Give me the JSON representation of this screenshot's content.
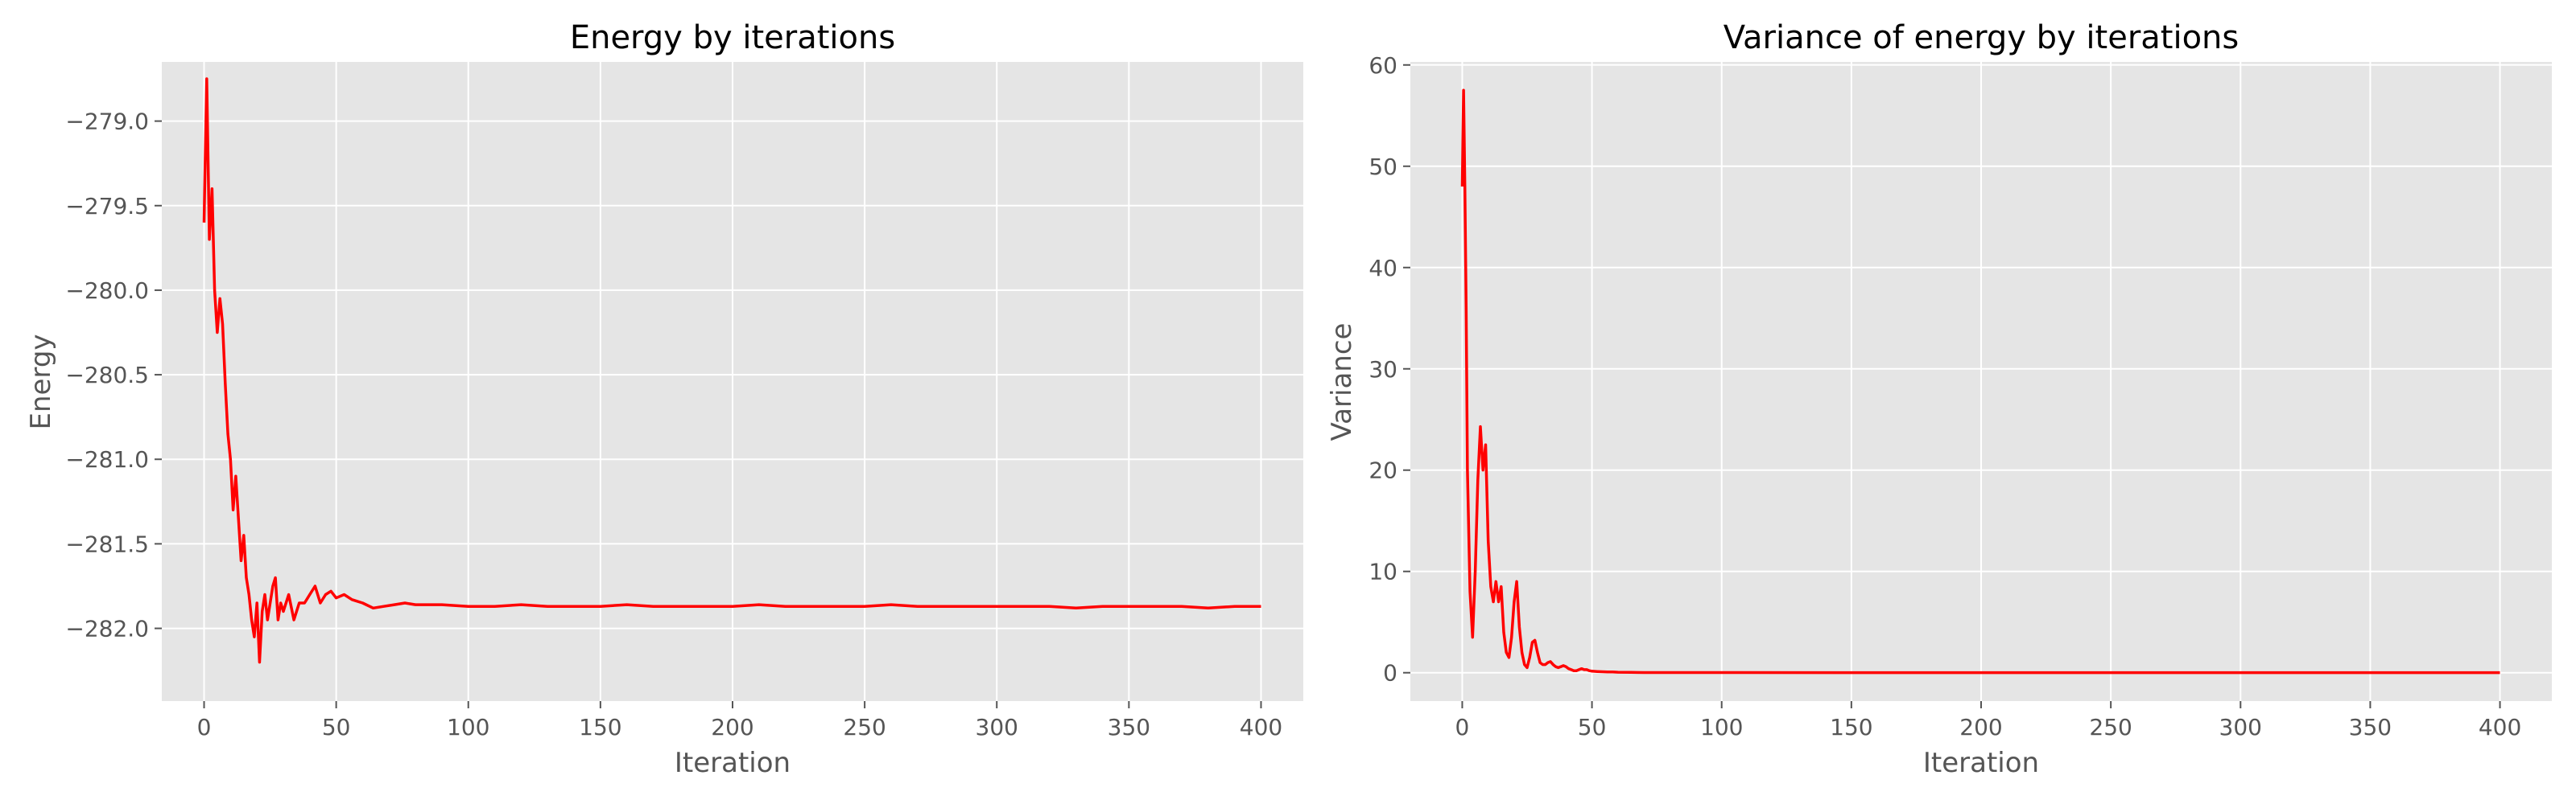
{
  "colors": {
    "background": "#ffffff",
    "plot_bg": "#e5e5e5",
    "grid": "#ffffff",
    "series": "#ff0000",
    "text": "#555555"
  },
  "chart_data": [
    {
      "type": "line",
      "title": "Energy by iterations",
      "xlabel": "Iteration",
      "ylabel": "Energy",
      "xlim": [
        -16,
        416
      ],
      "ylim": [
        -282.43,
        -278.65
      ],
      "xticks": [
        0,
        50,
        100,
        150,
        200,
        250,
        300,
        350,
        400
      ],
      "yticks": [
        -282.0,
        -281.5,
        -281.0,
        -280.5,
        -280.0,
        -279.5,
        -279.0
      ],
      "ytick_labels": [
        "−282.0",
        "−281.5",
        "−281.0",
        "−280.5",
        "−280.0",
        "−279.5",
        "−279.0"
      ],
      "grid": true,
      "series": [
        {
          "color": "#ff0000",
          "x": [
            0,
            1,
            2,
            3,
            4,
            5,
            6,
            7,
            8,
            9,
            10,
            11,
            12,
            13,
            14,
            15,
            16,
            17,
            18,
            19,
            20,
            21,
            22,
            23,
            24,
            25,
            26,
            27,
            28,
            29,
            30,
            32,
            34,
            36,
            38,
            40,
            42,
            44,
            46,
            48,
            50,
            53,
            56,
            60,
            64,
            68,
            72,
            76,
            80,
            90,
            100,
            110,
            120,
            130,
            140,
            150,
            160,
            170,
            180,
            190,
            200,
            210,
            220,
            230,
            240,
            250,
            260,
            270,
            280,
            290,
            300,
            310,
            320,
            330,
            340,
            350,
            360,
            370,
            380,
            390,
            400
          ],
          "y": [
            -279.6,
            -278.75,
            -279.7,
            -279.4,
            -280.0,
            -280.25,
            -280.05,
            -280.2,
            -280.55,
            -280.85,
            -281.0,
            -281.3,
            -281.1,
            -281.35,
            -281.6,
            -281.45,
            -281.7,
            -281.8,
            -281.95,
            -282.05,
            -281.85,
            -282.2,
            -281.9,
            -281.8,
            -281.95,
            -281.85,
            -281.75,
            -281.7,
            -281.95,
            -281.85,
            -281.9,
            -281.8,
            -281.95,
            -281.85,
            -281.85,
            -281.8,
            -281.75,
            -281.85,
            -281.8,
            -281.78,
            -281.82,
            -281.8,
            -281.83,
            -281.85,
            -281.88,
            -281.87,
            -281.86,
            -281.85,
            -281.86,
            -281.86,
            -281.87,
            -281.87,
            -281.86,
            -281.87,
            -281.87,
            -281.87,
            -281.86,
            -281.87,
            -281.87,
            -281.87,
            -281.87,
            -281.86,
            -281.87,
            -281.87,
            -281.87,
            -281.87,
            -281.86,
            -281.87,
            -281.87,
            -281.87,
            -281.87,
            -281.87,
            -281.87,
            -281.88,
            -281.87,
            -281.87,
            -281.87,
            -281.87,
            -281.88,
            -281.87,
            -281.87
          ]
        }
      ]
    },
    {
      "type": "line",
      "title": "Variance of energy by iterations",
      "xlabel": "Iteration",
      "ylabel": "Variance",
      "xlim": [
        -20,
        420
      ],
      "ylim": [
        -2.8,
        60.3
      ],
      "xticks": [
        0,
        50,
        100,
        150,
        200,
        250,
        300,
        350,
        400
      ],
      "yticks": [
        0,
        10,
        20,
        30,
        40,
        50,
        60
      ],
      "ytick_labels": [
        "0",
        "10",
        "20",
        "30",
        "40",
        "50",
        "60"
      ],
      "grid": true,
      "series": [
        {
          "color": "#ff0000",
          "x": [
            0,
            0.5,
            1,
            1.5,
            2,
            3,
            4,
            5,
            6,
            7,
            8,
            9,
            10,
            11,
            12,
            13,
            14,
            15,
            16,
            17,
            18,
            19,
            20,
            21,
            22,
            23,
            24,
            25,
            26,
            27,
            28,
            29,
            30,
            31,
            32,
            33,
            34,
            35,
            36,
            37,
            38,
            39,
            40,
            41,
            42,
            43,
            44,
            45,
            46,
            47,
            48,
            49,
            50,
            52,
            54,
            56,
            58,
            60,
            65,
            70,
            80,
            100,
            150,
            200,
            250,
            300,
            350,
            400
          ],
          "y": [
            48,
            57.5,
            48,
            36,
            20,
            8,
            3.5,
            10,
            19,
            24.3,
            20,
            22.5,
            13,
            8.5,
            7,
            9,
            7,
            8.5,
            4,
            2,
            1.5,
            3.5,
            7,
            9,
            4.5,
            2,
            0.8,
            0.5,
            1.5,
            3,
            3.2,
            2,
            1,
            0.8,
            0.8,
            1,
            1.1,
            0.8,
            0.6,
            0.5,
            0.6,
            0.7,
            0.6,
            0.4,
            0.3,
            0.2,
            0.2,
            0.3,
            0.4,
            0.3,
            0.3,
            0.2,
            0.15,
            0.12,
            0.1,
            0.08,
            0.07,
            0.05,
            0.03,
            0.02,
            0.02,
            0.02,
            0.01,
            0.01,
            0.01,
            0.01,
            0.01,
            0.01
          ]
        }
      ]
    }
  ]
}
